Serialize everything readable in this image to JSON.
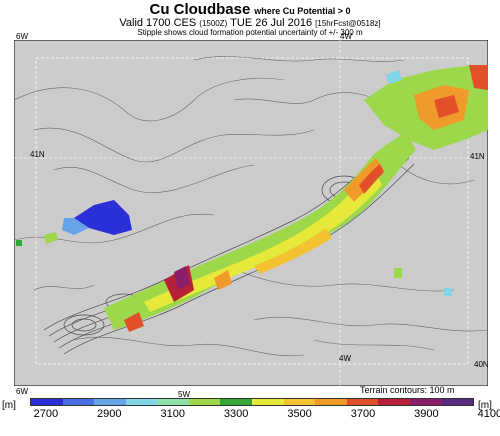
{
  "header": {
    "title": "Cu Cloudbase",
    "title_qualifier": "where Cu Potential > 0",
    "valid_prefix": "Valid 1700 CES",
    "valid_utc": "(1500Z)",
    "valid_date": "TUE 26 Jul 2016",
    "forecast": "[15hrFcst@0518z]",
    "subtitle": "Stipple shows cloud formation potential uncertainty of +/- 300 m"
  },
  "map": {
    "coord_labels": {
      "top_left_lon": "6W",
      "top_right_lon": "4W",
      "bottom_left_lon": "6W",
      "bottom_mid_lon": "5W",
      "inner_4w": "4W",
      "left_lat": "41N",
      "right_lat": "41N",
      "right_bottom_lat": "40N"
    },
    "terrain_note": "Terrain contours: 100 m"
  },
  "colorbar": {
    "unit_left": "[m]",
    "unit_right": "[m]",
    "ticks": [
      "2700",
      "2900",
      "3100",
      "3300",
      "3500",
      "3700",
      "3900",
      "4100"
    ],
    "colors": [
      "#2b2fd6",
      "#4a6fe0",
      "#66a4ea",
      "#7fd6e6",
      "#8fe0a8",
      "#9cd84a",
      "#33a838",
      "#e6e83a",
      "#f2c230",
      "#ef9a2a",
      "#e2502a",
      "#b8203a",
      "#8a1e6a",
      "#5a2a80"
    ]
  },
  "colors": {
    "map_bg": "#cccccc",
    "contour": "#5a5a5a",
    "grid": "#ffffff"
  }
}
